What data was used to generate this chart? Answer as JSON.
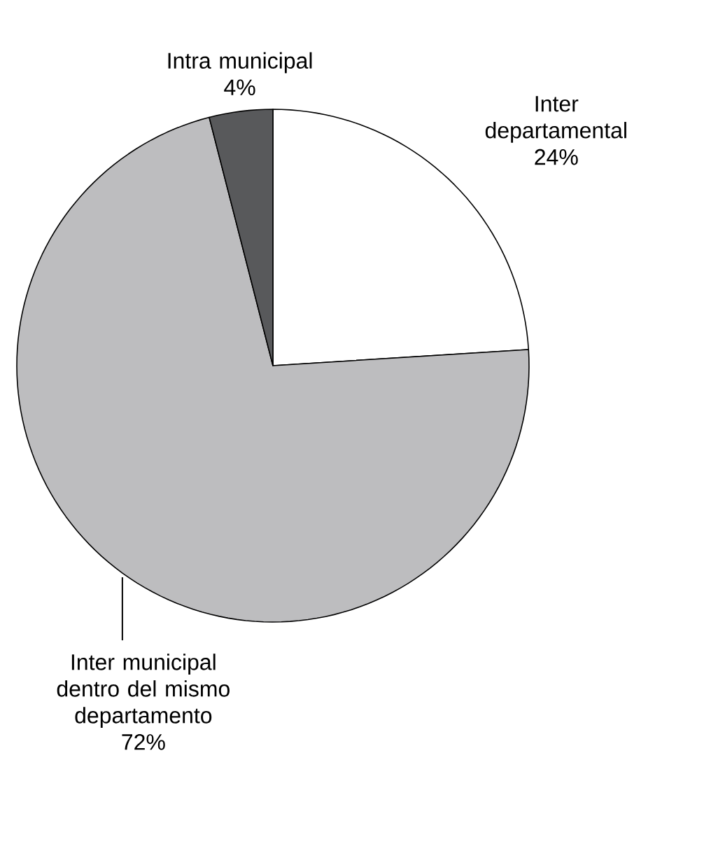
{
  "chart_data": {
    "type": "pie",
    "categories": [
      "Inter departamental",
      "Inter municipal dentro del mismo departamento",
      "Intra municipal"
    ],
    "values": [
      24,
      72,
      4
    ],
    "colors": [
      "#ffffff",
      "#bdbdbf",
      "#58595b"
    ],
    "value_labels": [
      "24%",
      "72%",
      "4%"
    ]
  }
}
